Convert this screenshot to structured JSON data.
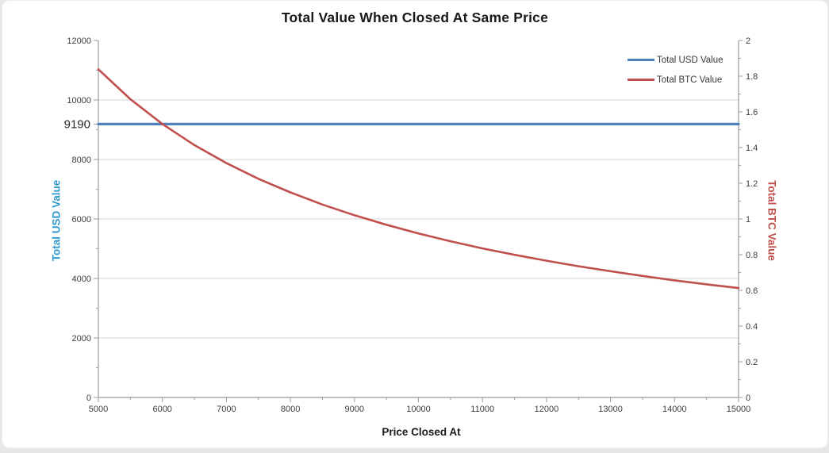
{
  "title": "Total Value When Closed At Same Price",
  "x_axis": {
    "label": "Price Closed At",
    "min": 5000,
    "max": 15000,
    "ticks": [
      5000,
      6000,
      7000,
      8000,
      9000,
      10000,
      11000,
      12000,
      13000,
      14000,
      15000
    ],
    "minor_tick_step": 500
  },
  "y_left_axis": {
    "label": "Total USD Value",
    "title_color": "#2E9AD0",
    "min": 0,
    "max": 12000,
    "ticks": [
      0,
      2000,
      4000,
      6000,
      8000,
      10000,
      12000
    ],
    "minor_tick_step": 1000,
    "special_tick_value": 9190,
    "special_tick_label": "9190"
  },
  "y_right_axis": {
    "label": "Total BTC Value",
    "title_color": "#C0504D",
    "min": 0,
    "max": 2,
    "ticks": [
      0,
      0.2,
      0.4,
      0.6,
      0.8,
      1,
      1.2,
      1.4,
      1.6,
      1.8,
      2
    ],
    "minor_tick_step": 0.1
  },
  "legend": {
    "items": [
      {
        "label": "Total USD Value",
        "color": "#4F81BD"
      },
      {
        "label": "Total BTC Value",
        "color": "#C0504D"
      }
    ]
  },
  "colors": {
    "grid": "#D6D6D6",
    "axis": "#9B9B9B",
    "tick_label": "#3D3D3D",
    "special_tick_label": "#262626",
    "title": "#1A1A1A"
  },
  "chart_data": {
    "type": "line",
    "title": "Total Value When Closed At Same Price",
    "xlabel": "Price Closed At",
    "ylabel_left": "Total USD Value",
    "ylabel_right": "Total BTC Value",
    "xlim": [
      5000,
      15000
    ],
    "ylim_left": [
      0,
      12000
    ],
    "ylim_right": [
      0,
      2
    ],
    "grid": "horizontal-major",
    "legend_position": "top-right",
    "x": [
      5000,
      5500,
      6000,
      6500,
      7000,
      7500,
      8000,
      8500,
      9000,
      9500,
      10000,
      10500,
      11000,
      11500,
      12000,
      12500,
      13000,
      13500,
      14000,
      14500,
      15000
    ],
    "series": [
      {
        "name": "Total USD Value",
        "axis": "left",
        "color": "#4F81BD",
        "values": [
          9190,
          9190,
          9190,
          9190,
          9190,
          9190,
          9190,
          9190,
          9190,
          9190,
          9190,
          9190,
          9190,
          9190,
          9190,
          9190,
          9190,
          9190,
          9190,
          9190,
          9190
        ]
      },
      {
        "name": "Total BTC Value",
        "axis": "right",
        "color": "#C0504D",
        "values": [
          1.838,
          1.671,
          1.532,
          1.414,
          1.313,
          1.225,
          1.149,
          1.081,
          1.021,
          0.967,
          0.919,
          0.875,
          0.835,
          0.799,
          0.766,
          0.735,
          0.707,
          0.681,
          0.656,
          0.634,
          0.613
        ]
      }
    ],
    "annotation": {
      "y_left_value": 9190,
      "label": "9190"
    }
  }
}
